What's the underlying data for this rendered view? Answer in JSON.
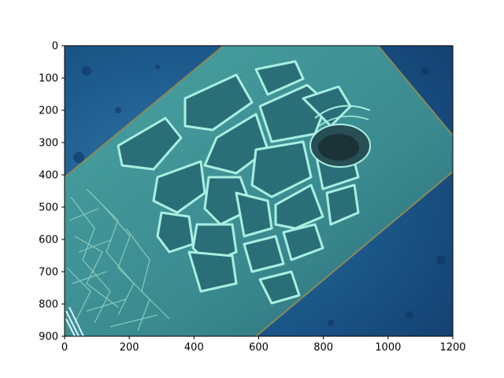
{
  "colors": {
    "ocean_deep": "#123f70",
    "ocean_mid": "#1d5a8c",
    "ocean_light": "#2f78a8",
    "turtle_skin": "#3e8e92",
    "turtle_scale": "#2a6f78",
    "scale_edge": "#9fe8dc",
    "crop_border": "#8a8a55",
    "image_border": "#8a1d1d"
  },
  "axes": {
    "x_ticks": [
      "0",
      "200",
      "400",
      "600",
      "800",
      "1000",
      "1200"
    ],
    "y_ticks": [
      "0",
      "100",
      "200",
      "300",
      "400",
      "500",
      "600",
      "700",
      "800",
      "900"
    ],
    "xlim": [
      0,
      1200
    ],
    "ylim": [
      900,
      0
    ]
  },
  "image": {
    "subject": "sea turtle head underwater",
    "width": 1200,
    "height": 900
  }
}
